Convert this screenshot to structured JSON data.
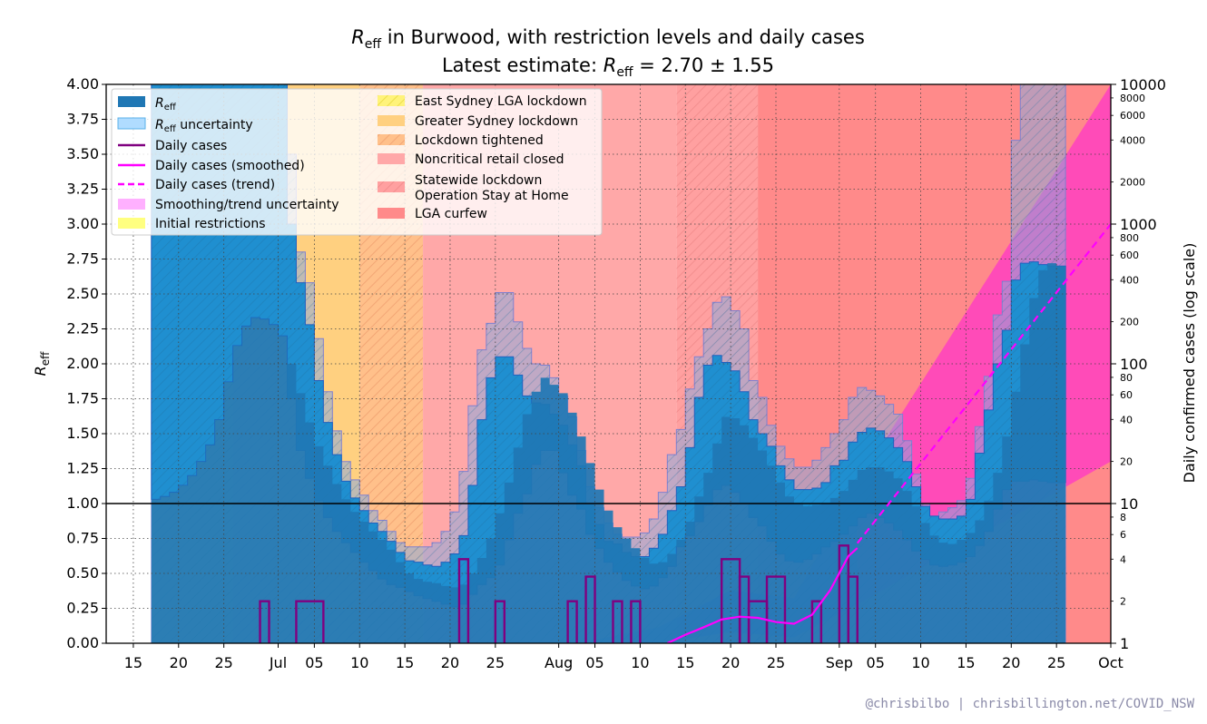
{
  "title_line1": "R_eff in Burwood, with restriction levels and daily cases",
  "title_line2": "Latest estimate: R_eff = 2.70 ± 1.55",
  "credit": "@chrisbilbo | chrisbillington.net/COVID_NSW",
  "colors": {
    "reff": "#1f77b4",
    "reff_band": "#1f8fd0",
    "daily_cases": "#800080",
    "smoothed": "#ff00ff",
    "initial_restrictions": "#fff37a",
    "east_sydney": "#fff37a",
    "greater_sydney": "#ffd080",
    "lockdown_tightened": "#ffc08a",
    "noncritical_retail": "#ffa8a8",
    "stay_at_home": "#ffa0a0",
    "lga_curfew": "#ff8a8a"
  },
  "chart_data": {
    "type": "step",
    "ylabel_left": "R_eff",
    "ylabel_right": "Daily confirmed cases (log scale)",
    "ylim_left": [
      0,
      4
    ],
    "ylim_right_log": [
      1,
      10000
    ],
    "y_ticks_left": [
      "0.00",
      "0.25",
      "0.50",
      "0.75",
      "1.00",
      "1.25",
      "1.50",
      "1.75",
      "2.00",
      "2.25",
      "2.50",
      "2.75",
      "3.00",
      "3.25",
      "3.50",
      "3.75",
      "4.00"
    ],
    "y_ticks_right_major": [
      "1",
      "10",
      "100",
      "1000",
      "10000"
    ],
    "y_ticks_right_minor": [
      "2",
      "4",
      "6",
      "8",
      "20",
      "40",
      "60",
      "80",
      "200",
      "400",
      "600",
      "800",
      "2000",
      "4000",
      "6000",
      "8000"
    ],
    "x_ticks": [
      {
        "date": "2021-06-15",
        "label": "15"
      },
      {
        "date": "2021-06-20",
        "label": "20"
      },
      {
        "date": "2021-06-25",
        "label": "25"
      },
      {
        "date": "2021-07-01",
        "label": "Jul"
      },
      {
        "date": "2021-07-05",
        "label": "05"
      },
      {
        "date": "2021-07-10",
        "label": "10"
      },
      {
        "date": "2021-07-15",
        "label": "15"
      },
      {
        "date": "2021-07-20",
        "label": "20"
      },
      {
        "date": "2021-07-25",
        "label": "25"
      },
      {
        "date": "2021-08-01",
        "label": "Aug"
      },
      {
        "date": "2021-08-05",
        "label": "05"
      },
      {
        "date": "2021-08-10",
        "label": "10"
      },
      {
        "date": "2021-08-15",
        "label": "15"
      },
      {
        "date": "2021-08-20",
        "label": "20"
      },
      {
        "date": "2021-08-25",
        "label": "25"
      },
      {
        "date": "2021-09-01",
        "label": "Sep"
      },
      {
        "date": "2021-09-05",
        "label": "05"
      },
      {
        "date": "2021-09-10",
        "label": "10"
      },
      {
        "date": "2021-09-15",
        "label": "15"
      },
      {
        "date": "2021-09-20",
        "label": "20"
      },
      {
        "date": "2021-09-25",
        "label": "25"
      },
      {
        "date": "2021-10-01",
        "label": "Oct"
      }
    ],
    "x_range": [
      "2021-06-12",
      "2021-10-01"
    ],
    "restriction_periods": [
      {
        "key": "initial_restrictions",
        "start": "2021-06-17",
        "end": "2021-06-21",
        "color": "#fff37a",
        "hatch": false
      },
      {
        "key": "east_sydney",
        "start": "2021-06-21",
        "end": "2021-06-26",
        "color": "#fff37a",
        "hatch": true
      },
      {
        "key": "greater_sydney",
        "start": "2021-06-26",
        "end": "2021-07-10",
        "color": "#ffd080",
        "hatch": false
      },
      {
        "key": "lockdown_tightened",
        "start": "2021-07-10",
        "end": "2021-07-17",
        "color": "#ffc08a",
        "hatch": true
      },
      {
        "key": "noncritical_retail",
        "start": "2021-07-17",
        "end": "2021-08-14",
        "color": "#ffa8a8",
        "hatch": false
      },
      {
        "key": "stay_at_home",
        "start": "2021-08-14",
        "end": "2021-08-23",
        "color": "#ffa0a0",
        "hatch": true
      },
      {
        "key": "lga_curfew",
        "start": "2021-08-23",
        "end": "2021-10-02",
        "color": "#ff8a8a",
        "hatch": false
      }
    ],
    "reff": {
      "start": "2021-06-17",
      "values": [
        1.03,
        1.05,
        1.08,
        1.13,
        1.2,
        1.3,
        1.42,
        1.6,
        1.87,
        2.13,
        2.27,
        2.33,
        2.32,
        2.28,
        2.2,
        2.0,
        1.79,
        1.58,
        1.41,
        1.27,
        1.14,
        1.03,
        0.94,
        0.87,
        0.8,
        0.74,
        0.67,
        0.58,
        0.5,
        0.46,
        0.44,
        0.43,
        0.41,
        0.4,
        0.42,
        0.5,
        0.61,
        0.75,
        0.93,
        1.15,
        1.4,
        1.64,
        1.8,
        1.9,
        1.85,
        1.79,
        1.65,
        1.48,
        1.29,
        1.1,
        0.95,
        0.83,
        0.75,
        0.68,
        0.61,
        0.57,
        0.58,
        0.64,
        0.74,
        0.87,
        1.05,
        1.22,
        1.43,
        1.62,
        1.61,
        1.56,
        1.47,
        1.38,
        1.27,
        1.15,
        1.05,
        1.0,
        0.98,
        0.99,
        1.0,
        1.04,
        1.09,
        1.17,
        1.24,
        1.26,
        1.26,
        1.23,
        1.18,
        1.09,
        0.98,
        0.86,
        0.77,
        0.72,
        0.71,
        0.74,
        0.79,
        0.88,
        1.02,
        1.22,
        1.48,
        1.8,
        2.14,
        2.47,
        2.67,
        2.72,
        2.7
      ]
    },
    "reff_uncertainty": {
      "start": "2021-06-17",
      "upper": [
        4.4,
        4.4,
        4.4,
        4.4,
        4.4,
        4.4,
        4.4,
        4.4,
        4.4,
        4.4,
        4.4,
        4.4,
        4.4,
        4.4,
        4.2,
        3.5,
        2.8,
        2.58,
        2.18,
        1.8,
        1.52,
        1.3,
        1.17,
        1.06,
        0.95,
        0.88,
        0.8,
        0.72,
        0.69,
        0.69,
        0.69,
        0.72,
        0.8,
        0.94,
        1.23,
        1.7,
        2.1,
        2.29,
        2.51,
        2.51,
        2.3,
        2.11,
        2.0,
        1.99,
        1.9,
        1.77,
        1.62,
        1.38,
        1.12,
        0.97,
        0.86,
        0.78,
        0.76,
        0.76,
        0.79,
        0.89,
        1.08,
        1.35,
        1.53,
        1.82,
        2.05,
        2.25,
        2.44,
        2.48,
        2.38,
        2.25,
        1.88,
        1.76,
        1.56,
        1.41,
        1.32,
        1.26,
        1.26,
        1.31,
        1.4,
        1.5,
        1.6,
        1.76,
        1.83,
        1.81,
        1.77,
        1.71,
        1.64,
        1.45,
        1.21,
        1.0,
        0.91,
        0.94,
        0.97,
        1.02,
        1.18,
        1.55,
        1.91,
        2.35,
        2.59,
        3.6,
        4.3,
        4.4,
        4.4,
        4.4,
        4.4
      ],
      "lower": [
        0.0,
        0.0,
        0.0,
        0.0,
        0.0,
        0.0,
        0.0,
        0.0,
        0.0,
        0.0,
        0.0,
        0.0,
        0.0,
        0.0,
        0.0,
        0.0,
        0.0,
        0.0,
        0.0,
        0.0,
        0.0,
        0.0,
        0.0,
        0.0,
        0.0,
        0.0,
        0.0,
        0.0,
        0.0,
        0.0,
        0.0,
        0.0,
        0.0,
        0.0,
        0.0,
        0.0,
        0.0,
        0.0,
        0.0,
        0.0,
        0.0,
        0.0,
        0.0,
        0.0,
        0.0,
        0.0,
        0.0,
        0.0,
        0.0,
        0.0,
        0.0,
        0.0,
        0.0,
        0.0,
        0.0,
        0.0,
        0.0,
        0.0,
        0.0,
        0.0,
        0.0,
        0.0,
        0.0,
        0.0,
        0.0,
        0.0,
        0.0,
        0.0,
        0.0,
        0.0,
        0.0,
        0.0,
        0.0,
        0.0,
        0.0,
        0.0,
        0.0,
        0.0,
        0.0,
        0.0,
        0.0,
        0.0,
        0.0,
        0.0,
        0.0,
        0.0,
        0.0,
        0.0,
        0.0,
        0.0,
        0.0,
        0.0,
        0.0,
        0.0,
        0.0,
        0.0,
        0.0,
        0.0,
        0.0,
        0.0,
        0.0
      ]
    },
    "reff_band_ci": {
      "start": "2021-06-17",
      "upper": [
        4.4,
        4.4,
        4.4,
        4.4,
        4.4,
        4.4,
        4.4,
        4.4,
        4.4,
        4.4,
        4.4,
        4.4,
        4.4,
        4.4,
        4.0,
        3.0,
        2.58,
        2.28,
        1.88,
        1.58,
        1.35,
        1.16,
        1.04,
        0.95,
        0.86,
        0.8,
        0.73,
        0.65,
        0.59,
        0.58,
        0.56,
        0.55,
        0.58,
        0.64,
        0.77,
        1.13,
        1.6,
        1.9,
        2.05,
        2.05,
        1.92,
        1.77,
        1.72,
        1.71,
        1.64,
        1.56,
        1.42,
        1.27,
        1.0,
        0.85,
        0.73,
        0.71,
        0.65,
        0.62,
        0.62,
        0.68,
        0.78,
        0.95,
        1.12,
        1.4,
        1.76,
        1.99,
        2.06,
        2.01,
        1.95,
        1.8,
        1.6,
        1.5,
        1.41,
        1.27,
        1.17,
        1.1,
        1.1,
        1.11,
        1.15,
        1.27,
        1.31,
        1.44,
        1.51,
        1.54,
        1.52,
        1.47,
        1.4,
        1.3,
        1.12,
        0.98,
        0.91,
        0.89,
        0.89,
        0.91,
        1.03,
        1.36,
        1.67,
        2.0,
        2.24,
        2.6,
        2.72,
        2.73,
        2.71,
        2.7,
        2.7
      ],
      "lower": [
        1.03,
        1.05,
        1.08,
        1.13,
        1.2,
        1.3,
        1.42,
        1.6,
        1.87,
        2.13,
        2.27,
        2.33,
        2.32,
        2.28,
        2.2,
        1.75,
        1.38,
        1.18,
        1.02,
        0.9,
        0.8,
        0.72,
        0.65,
        0.58,
        0.52,
        0.46,
        0.42,
        0.4,
        0.37,
        0.34,
        0.32,
        0.3,
        0.28,
        0.26,
        0.28,
        0.35,
        0.42,
        0.47,
        0.56,
        0.74,
        0.93,
        1.07,
        1.28,
        1.38,
        1.38,
        1.22,
        1.06,
        0.96,
        0.78,
        0.68,
        0.58,
        0.51,
        0.45,
        0.41,
        0.39,
        0.41,
        0.47,
        0.55,
        0.69,
        0.77,
        0.87,
        0.99,
        1.1,
        1.13,
        1.08,
        1.0,
        0.9,
        0.84,
        0.73,
        0.64,
        0.59,
        0.58,
        0.6,
        0.64,
        0.69,
        0.73,
        0.78,
        0.84,
        0.9,
        0.93,
        0.9,
        0.86,
        0.81,
        0.74,
        0.66,
        0.6,
        0.56,
        0.55,
        0.56,
        0.58,
        0.62,
        0.7,
        0.8,
        0.96,
        1.1,
        1.16,
        1.16,
        1.17,
        1.16,
        1.15,
        1.15
      ]
    },
    "daily_cases": {
      "segments": [
        {
          "start": "2021-06-29",
          "end": "2021-06-30",
          "value": 2
        },
        {
          "start": "2021-07-03",
          "end": "2021-07-06",
          "value": 2
        },
        {
          "start": "2021-07-21",
          "end": "2021-07-22",
          "value": 4
        },
        {
          "start": "2021-07-25",
          "end": "2021-07-26",
          "value": 2
        },
        {
          "start": "2021-08-02",
          "end": "2021-08-03",
          "value": 2
        },
        {
          "start": "2021-08-04",
          "end": "2021-08-05",
          "value": 3
        },
        {
          "start": "2021-08-07",
          "end": "2021-08-08",
          "value": 2
        },
        {
          "start": "2021-08-09",
          "end": "2021-08-10",
          "value": 2
        },
        {
          "start": "2021-08-19",
          "end": "2021-08-21",
          "value": 4
        },
        {
          "start": "2021-08-21",
          "end": "2021-08-22",
          "value": 3
        },
        {
          "start": "2021-08-22",
          "end": "2021-08-24",
          "value": 2
        },
        {
          "start": "2021-08-24",
          "end": "2021-08-26",
          "value": 3
        },
        {
          "start": "2021-08-29",
          "end": "2021-08-30",
          "value": 2
        },
        {
          "start": "2021-09-01",
          "end": "2021-09-02",
          "value": 5
        },
        {
          "start": "2021-09-02",
          "end": "2021-09-03",
          "value": 3
        }
      ]
    },
    "daily_cases_smoothed": {
      "points": [
        [
          "2021-08-13",
          1.0
        ],
        [
          "2021-08-15",
          1.15
        ],
        [
          "2021-08-17",
          1.3
        ],
        [
          "2021-08-19",
          1.48
        ],
        [
          "2021-08-21",
          1.55
        ],
        [
          "2021-08-23",
          1.52
        ],
        [
          "2021-08-25",
          1.42
        ],
        [
          "2021-08-27",
          1.38
        ],
        [
          "2021-08-29",
          1.6
        ],
        [
          "2021-08-31",
          2.4
        ],
        [
          "2021-09-02",
          4.2
        ],
        [
          "2021-09-03",
          4.8
        ]
      ]
    },
    "daily_cases_trend": {
      "points": [
        [
          "2021-09-03",
          5.2
        ],
        [
          "2021-10-01",
          1000
        ]
      ]
    },
    "trend_uncertainty": {
      "start": "2021-09-03",
      "end": "2021-10-01",
      "lower": [
        1.9,
        20
      ],
      "upper": [
        14,
        10000
      ]
    },
    "smoothing_uncertainty": {
      "points_lower": [
        [
          "2021-08-03",
          1.0
        ],
        [
          "2021-08-12",
          1.0
        ],
        [
          "2021-08-20",
          1.2
        ],
        [
          "2021-08-27",
          1.1
        ],
        [
          "2021-09-03",
          1.9
        ]
      ],
      "points_upper": [
        [
          "2021-08-03",
          1.0
        ],
        [
          "2021-08-12",
          1.3
        ],
        [
          "2021-08-20",
          2.4
        ],
        [
          "2021-08-27",
          2.1
        ],
        [
          "2021-09-03",
          14
        ]
      ]
    },
    "horizontal_line": 1.0,
    "legend": {
      "col1": [
        "R_eff",
        "R_eff uncertainty",
        "Daily cases",
        "Daily cases (smoothed)",
        "Daily cases (trend)",
        "Smoothing/trend uncertainty",
        "Initial restrictions"
      ],
      "col2": [
        "East Sydney LGA lockdown",
        "Greater Sydney lockdown",
        "Lockdown tightened",
        "Noncritical retail closed",
        "Statewide lockdown\nOperation Stay at Home",
        "LGA curfew"
      ]
    },
    "grid": true,
    "legend_placement": "top-left"
  }
}
